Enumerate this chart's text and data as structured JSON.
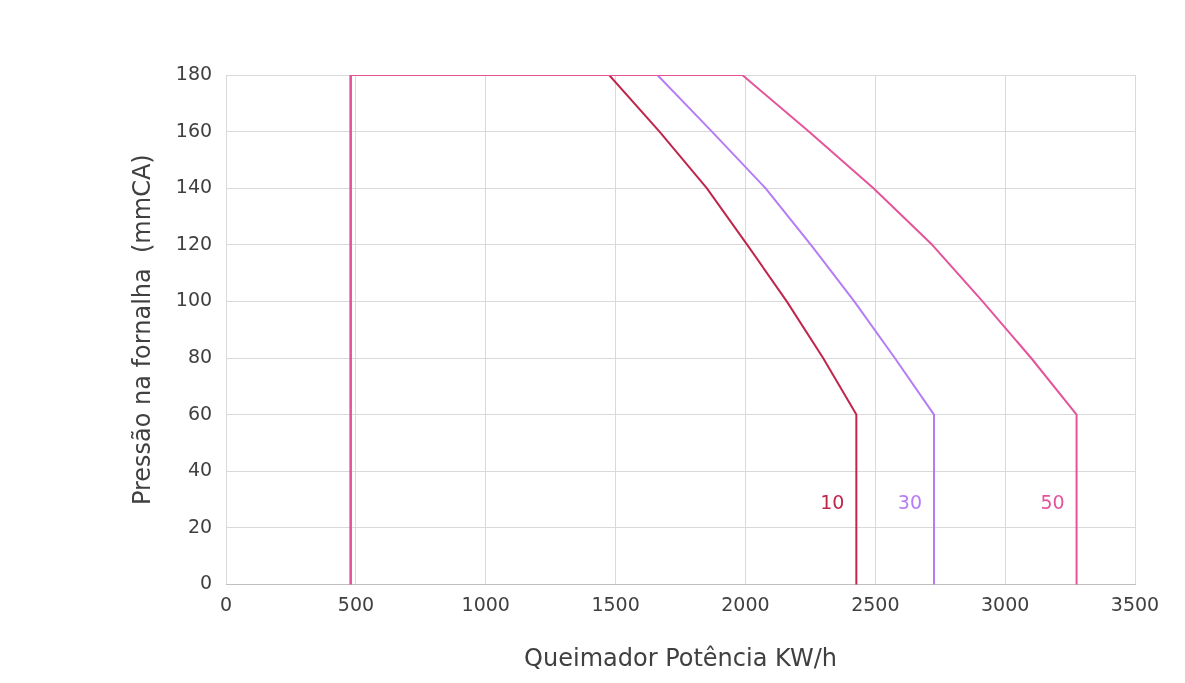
{
  "chart_data": {
    "type": "line",
    "xlabel": "Queimador Potência KW/h",
    "ylabel": "Pressão na fornalha  (mmCA)",
    "series": [
      {
        "name": "50",
        "color": "#e5549b",
        "x": [
          480,
          480,
          1988,
          2244,
          2493,
          2719,
          2913,
          3100,
          3275,
          3275
        ],
        "values": [
          0,
          180,
          180,
          160,
          140,
          120,
          100,
          80,
          60,
          0
        ]
      },
      {
        "name": "30",
        "color": "#b67cf5",
        "x": [
          480,
          480,
          1661,
          1871,
          2077,
          2252,
          2419,
          2575,
          2726,
          2726
        ],
        "values": [
          0,
          180,
          180,
          160,
          140,
          120,
          100,
          80,
          60,
          0
        ]
      },
      {
        "name": "10",
        "color": "#c0264b",
        "x": [
          480,
          480,
          1475,
          1669,
          1851,
          2007,
          2159,
          2299,
          2427,
          2427
        ],
        "values": [
          0,
          180,
          180,
          160,
          140,
          120,
          100,
          80,
          60,
          0
        ]
      }
    ],
    "xlim": [
      0,
      3500
    ],
    "xticks": [
      0,
      500,
      1000,
      1500,
      2000,
      2500,
      3000,
      3500
    ],
    "ylim": [
      0,
      180
    ],
    "yticks": [
      0,
      20,
      40,
      60,
      80,
      100,
      120,
      140,
      160,
      180
    ],
    "grid": true,
    "marker": "none",
    "line_style": "solid",
    "legend": false
  }
}
